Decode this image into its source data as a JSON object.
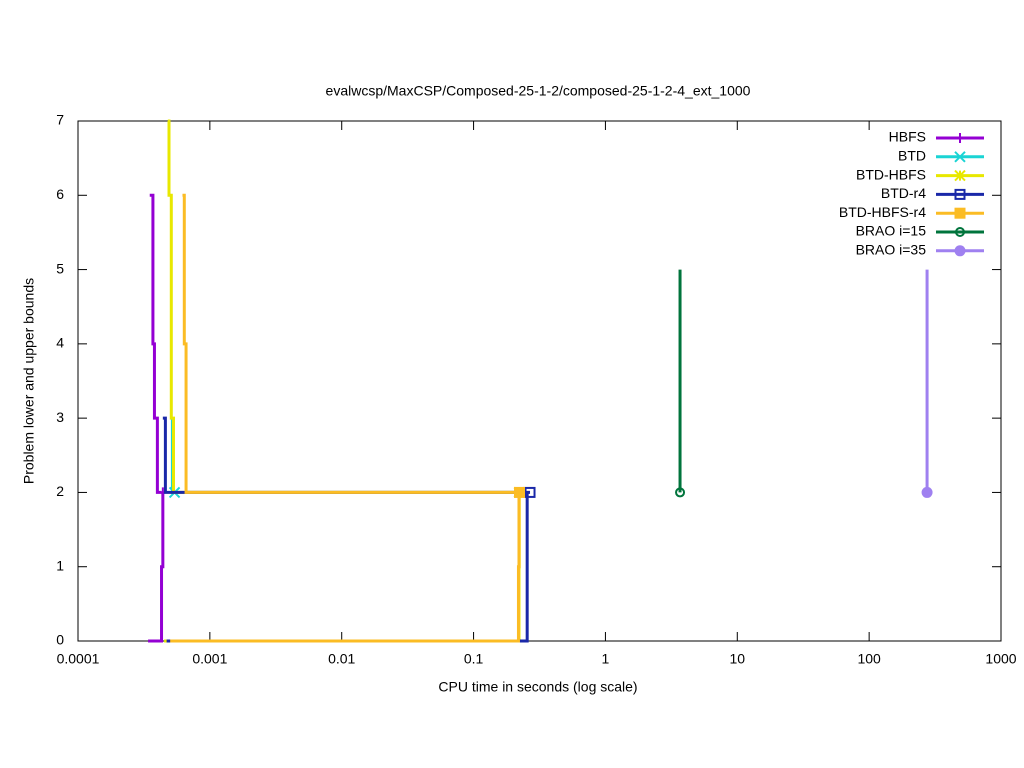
{
  "chart_data": {
    "type": "line",
    "title": "evalwcsp/MaxCSP/Composed-25-1-2/composed-25-1-2-4_ext_1000",
    "xlabel": "CPU time in seconds (log scale)",
    "ylabel": "Problem lower and upper bounds",
    "xscale": "log",
    "legend": "top right",
    "xlim": [
      0.0001,
      1000
    ],
    "ylim": [
      0,
      7
    ],
    "xticks": [
      0.0001,
      0.001,
      0.01,
      0.1,
      1,
      10,
      100,
      1000
    ],
    "yticks": [
      0,
      1,
      2,
      3,
      4,
      5,
      6,
      7
    ],
    "series": [
      {
        "name": "HBFS",
        "color": "#9400d3",
        "marker": "plus",
        "x": [
          0.00035,
          0.00037,
          0.00037,
          0.00038,
          0.00038,
          0.0004,
          0.0004,
          0.00043,
          null,
          0.00034,
          0.00043,
          0.00043,
          0.00044,
          0.00044
        ],
        "values": [
          6,
          6,
          4,
          4,
          3,
          3,
          2,
          2,
          null,
          0,
          0,
          1,
          1,
          2
        ]
      },
      {
        "name": "BTD",
        "color": "#1ad4d4",
        "marker": "cross",
        "x": [
          0.00052,
          0.00052,
          0.00054
        ],
        "values": [
          3,
          2,
          2
        ]
      },
      {
        "name": "BTD-HBFS",
        "color": "#e8e800",
        "marker": "star",
        "x": [
          0.00048,
          0.00049,
          0.00049,
          0.00051,
          0.00051,
          0.00053,
          0.00053,
          0.00056,
          0.223,
          null,
          0.00045,
          0.221,
          0.221,
          0.222,
          0.222
        ],
        "values": [
          7,
          7,
          6,
          6,
          3,
          3,
          2,
          2,
          2,
          null,
          0,
          0,
          1,
          1,
          2
        ]
      },
      {
        "name": "BTD-r4",
        "color": "#1a28a8",
        "marker": "square-open",
        "x": [
          0.00044,
          0.00046,
          0.00046,
          0.00048,
          0.268,
          null,
          0.00047,
          0.255,
          0.255,
          0.268
        ],
        "values": [
          3,
          3,
          2,
          2,
          2,
          null,
          0,
          0,
          2,
          2
        ]
      },
      {
        "name": "BTD-HBFS-r4",
        "color": "#fbbc24",
        "marker": "square",
        "x": [
          0.00062,
          0.00064,
          0.00064,
          0.00066,
          0.00066,
          0.00068,
          0.223,
          null,
          0.0005,
          0.219,
          0.219,
          0.221,
          0.221,
          0.223
        ],
        "values": [
          6,
          6,
          4,
          4,
          2,
          2,
          2,
          null,
          0,
          0,
          1,
          1,
          2,
          2
        ]
      },
      {
        "name": "BRAO i=15",
        "color": "#00743c",
        "marker": "circle-open",
        "x": [
          3.68,
          3.68
        ],
        "values": [
          5,
          2
        ]
      },
      {
        "name": "BRAO i=35",
        "color": "#9f80f0",
        "marker": "circle",
        "x": [
          275,
          275
        ],
        "values": [
          5,
          2
        ]
      }
    ]
  }
}
